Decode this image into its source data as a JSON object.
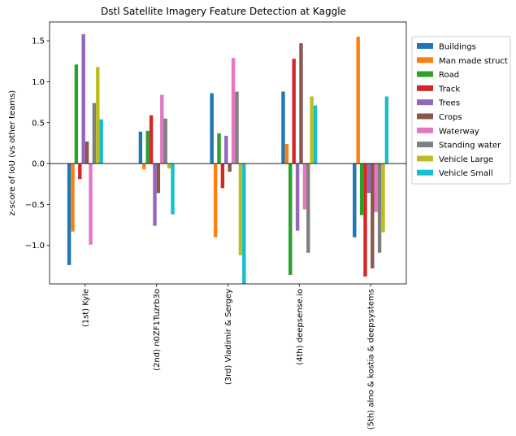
{
  "chart_data": {
    "type": "bar",
    "title": "Dstl Satellite Imagery Feature Detection at Kaggle",
    "xlabel": "",
    "ylabel": "z-score of IoU (vs other teams)",
    "ylim": [
      -1.47,
      1.73
    ],
    "yticks": [
      -1.0,
      -0.5,
      0.0,
      0.5,
      1.0,
      1.5
    ],
    "ytick_labels": [
      "−1.0",
      "−0.5",
      "0.0",
      "0.5",
      "1.0",
      "1.5"
    ],
    "grid": false,
    "legend_position": "right",
    "categories": [
      "(1st) Kyle",
      "(2nd) n0ZF1Tuzrb3o",
      "(3rd) Vladimir & Sergey",
      "(4th) deepsense.io",
      "(5th) alno & kostia & deepsystems"
    ],
    "series": [
      {
        "name": "Buildings",
        "color": "#1f77b4",
        "values": [
          -1.24,
          0.39,
          0.86,
          0.88,
          -0.9
        ]
      },
      {
        "name": "Man made struct",
        "color": "#ff7f0e",
        "values": [
          -0.83,
          -0.07,
          -0.9,
          0.24,
          1.55
        ]
      },
      {
        "name": "Road",
        "color": "#2ca02c",
        "values": [
          1.21,
          0.4,
          0.37,
          -1.36,
          -0.63
        ]
      },
      {
        "name": "Track",
        "color": "#d62728",
        "values": [
          -0.19,
          0.59,
          -0.3,
          1.28,
          -1.38
        ]
      },
      {
        "name": "Trees",
        "color": "#9467bd",
        "values": [
          1.58,
          -0.76,
          0.34,
          -0.82,
          -0.36
        ]
      },
      {
        "name": "Crops",
        "color": "#8c564b",
        "values": [
          0.27,
          -0.36,
          -0.1,
          1.47,
          -1.28
        ]
      },
      {
        "name": "Waterway",
        "color": "#e377c2",
        "values": [
          -0.99,
          0.84,
          1.29,
          -0.56,
          -0.59
        ]
      },
      {
        "name": "Standing water",
        "color": "#7f7f7f",
        "values": [
          0.74,
          0.55,
          0.88,
          -1.09,
          -1.09
        ]
      },
      {
        "name": "Vehicle Large",
        "color": "#bcbd22",
        "values": [
          1.18,
          -0.06,
          -1.12,
          0.82,
          -0.84
        ]
      },
      {
        "name": "Vehicle Small",
        "color": "#17becf",
        "values": [
          0.54,
          -0.62,
          -1.47,
          0.71,
          0.82
        ]
      }
    ]
  }
}
